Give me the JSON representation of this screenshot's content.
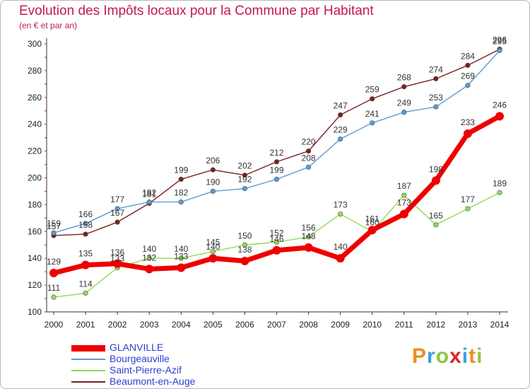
{
  "chart_data": {
    "type": "line",
    "title": "Evolution des Impôts locaux pour la Commune par Habitant",
    "subtitle": "(en € et par an)",
    "x": [
      2000,
      2001,
      2002,
      2003,
      2004,
      2005,
      2006,
      2007,
      2008,
      2009,
      2010,
      2011,
      2012,
      2013,
      2014
    ],
    "ylim": [
      100,
      300
    ],
    "yticks": [
      100,
      120,
      140,
      160,
      180,
      200,
      220,
      240,
      260,
      280,
      300
    ],
    "grid": false,
    "legend_position": "bottom-left",
    "series": [
      {
        "name": "Beaumont-en-Auge",
        "color": "#7a1f1f",
        "values": [
          157,
          158,
          167,
          181,
          199,
          206,
          202,
          212,
          220,
          247,
          259,
          268,
          274,
          284,
          296
        ]
      },
      {
        "name": "Bourgeauville",
        "color": "#5b9bd5",
        "values": [
          159,
          166,
          177,
          182,
          182,
          190,
          192,
          199,
          208,
          229,
          241,
          249,
          253,
          269,
          295
        ]
      },
      {
        "name": "Saint-Pierre-Azif",
        "color": "#8fdc5a",
        "values": [
          111,
          114,
          133,
          140,
          140,
          145,
          150,
          152,
          156,
          173,
          160,
          187,
          165,
          177,
          189
        ]
      },
      {
        "name": "GLANVILLE",
        "color": "#ee0000",
        "values": [
          129,
          135,
          136,
          132,
          133,
          140,
          138,
          146,
          148,
          140,
          161,
          173,
          198,
          233,
          246
        ]
      }
    ],
    "legend_order": [
      "GLANVILLE",
      "Bourgeauville",
      "Saint-Pierre-Azif",
      "Beaumont-en-Auge"
    ]
  },
  "logo": {
    "letters": [
      "P",
      "r",
      "o",
      "x",
      "i",
      "t",
      "i"
    ],
    "colors": [
      "#f28c1e",
      "#3aa0e0",
      "#8dc63f",
      "#e2242b",
      "#3aa0e0",
      "#f28c1e",
      "#8dc63f"
    ]
  }
}
